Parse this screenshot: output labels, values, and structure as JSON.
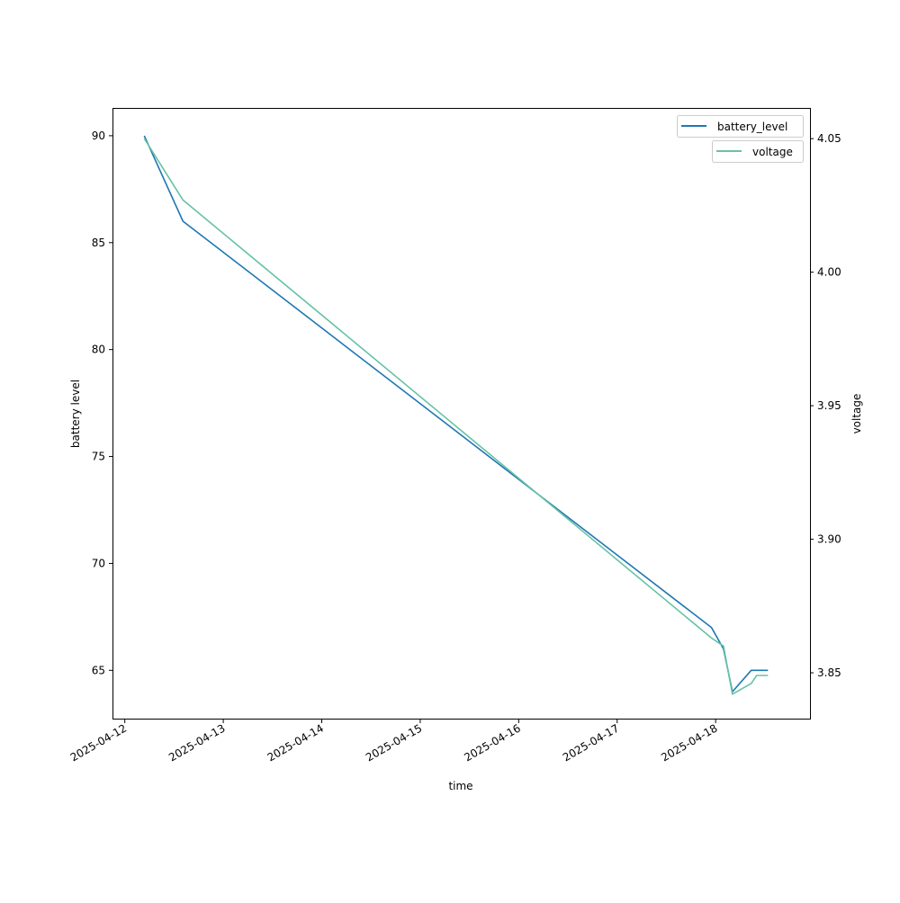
{
  "chart_data": {
    "type": "line",
    "title": "",
    "xlabel": "time",
    "ylabel": "battery level",
    "y2label": "voltage",
    "xlim": [
      "2025-04-11T21:00",
      "2025-04-18T23:00"
    ],
    "ylim": [
      62.7,
      91.3
    ],
    "y2lim": [
      3.8325,
      4.0615
    ],
    "x_ticks": [
      "2025-04-12",
      "2025-04-13",
      "2025-04-14",
      "2025-04-15",
      "2025-04-16",
      "2025-04-17",
      "2025-04-18"
    ],
    "y_ticks": [
      65,
      70,
      75,
      80,
      85,
      90
    ],
    "y2_ticks": [
      "3.85",
      "3.90",
      "3.95",
      "4.00",
      "4.05"
    ],
    "grid": false,
    "legend_placement": "top-right",
    "series": [
      {
        "name": "battery_level",
        "axis": "left",
        "color": "#1f77b4",
        "x": [
          "2025-04-12T04:45",
          "2025-04-12T14:10",
          "2025-04-17T23:00",
          "2025-04-18T01:55",
          "2025-04-18T04:05",
          "2025-04-18T08:40",
          "2025-04-18T12:45"
        ],
        "values": [
          90,
          86,
          67,
          66,
          64,
          65,
          65
        ]
      },
      {
        "name": "voltage",
        "axis": "right",
        "color": "#66c2a5",
        "x": [
          "2025-04-12T04:45",
          "2025-04-12T14:10",
          "2025-04-17T23:00",
          "2025-04-18T01:55",
          "2025-04-18T04:05",
          "2025-04-18T08:40",
          "2025-04-18T10:00",
          "2025-04-18T12:45"
        ],
        "values": [
          4.05,
          4.027,
          3.863,
          3.86,
          3.842,
          3.846,
          3.849,
          3.849
        ]
      }
    ]
  }
}
